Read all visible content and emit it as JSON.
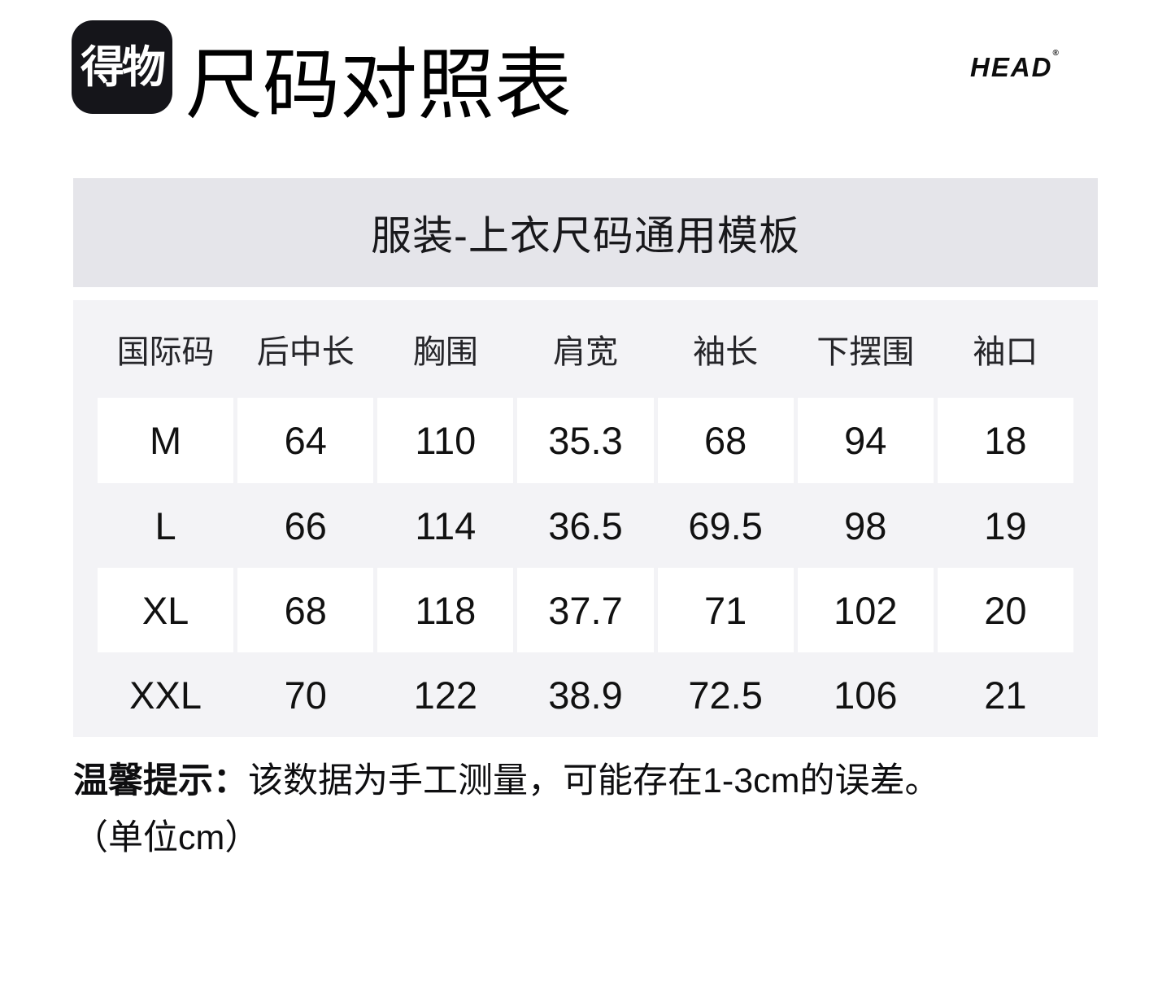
{
  "header": {
    "logo_text": "得物",
    "title": "尺码对照表",
    "brand": "HEAD",
    "brand_mark": "®"
  },
  "banner": {
    "title": "服装-上衣尺码通用模板"
  },
  "table": {
    "columns": [
      "国际码",
      "后中长",
      "胸围",
      "肩宽",
      "袖长",
      "下摆围",
      "袖口"
    ],
    "rows": [
      {
        "size": "M",
        "values": [
          "64",
          "110",
          "35.3",
          "68",
          "94",
          "18"
        ]
      },
      {
        "size": "L",
        "values": [
          "66",
          "114",
          "36.5",
          "69.5",
          "98",
          "19"
        ]
      },
      {
        "size": "XL",
        "values": [
          "68",
          "118",
          "37.7",
          "71",
          "102",
          "20"
        ]
      },
      {
        "size": "XXL",
        "values": [
          "70",
          "122",
          "38.9",
          "72.5",
          "106",
          "21"
        ]
      }
    ]
  },
  "note": {
    "label": "温馨提示：",
    "text": "该数据为手工测量，可能存在1-3cm的误差。",
    "unit_line": "（单位cm）"
  },
  "colors": {
    "banner_bg": "#e5e5ea",
    "section_bg": "#f3f3f6",
    "row_highlight": "#ffffff",
    "logo_bg": "#15151a",
    "text": "#111111"
  }
}
